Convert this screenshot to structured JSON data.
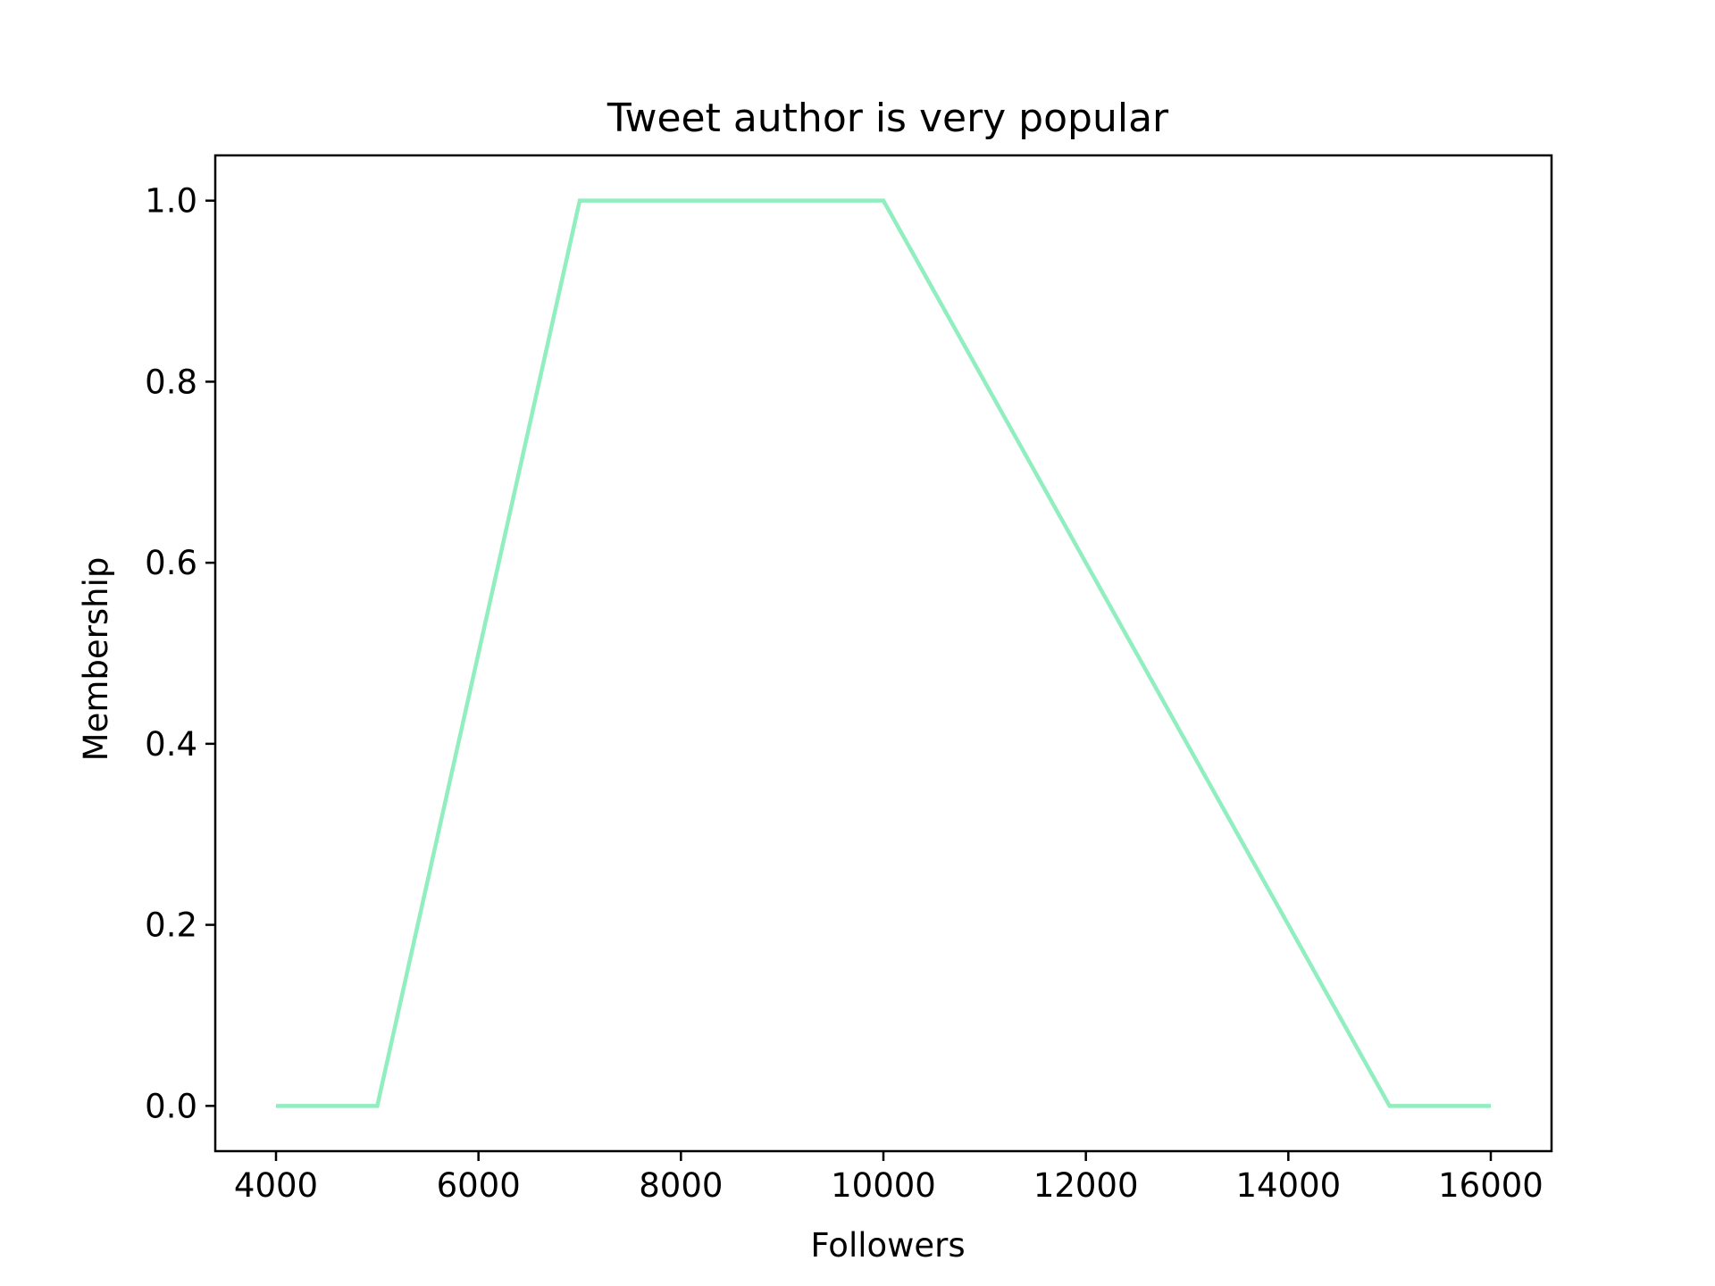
{
  "chart_data": {
    "type": "line",
    "title": "Tweet author is very popular",
    "xlabel": "Followers",
    "ylabel": "Membership",
    "xlim": [
      3400,
      16600
    ],
    "ylim": [
      -0.05,
      1.05
    ],
    "grid": false,
    "x_ticks": [
      4000,
      6000,
      8000,
      10000,
      12000,
      14000,
      16000
    ],
    "y_ticks": [
      0.0,
      0.2,
      0.4,
      0.6,
      0.8,
      1.0
    ],
    "x_tick_labels": [
      "4000",
      "6000",
      "8000",
      "10000",
      "12000",
      "14000",
      "16000"
    ],
    "y_tick_labels": [
      "0.0",
      "0.2",
      "0.4",
      "0.6",
      "0.8",
      "1.0"
    ],
    "series": [
      {
        "color": "#90eebf",
        "x": [
          4000,
          5000,
          7000,
          10000,
          15000,
          16000
        ],
        "y": [
          0,
          0,
          1,
          1,
          0,
          0
        ]
      }
    ]
  }
}
